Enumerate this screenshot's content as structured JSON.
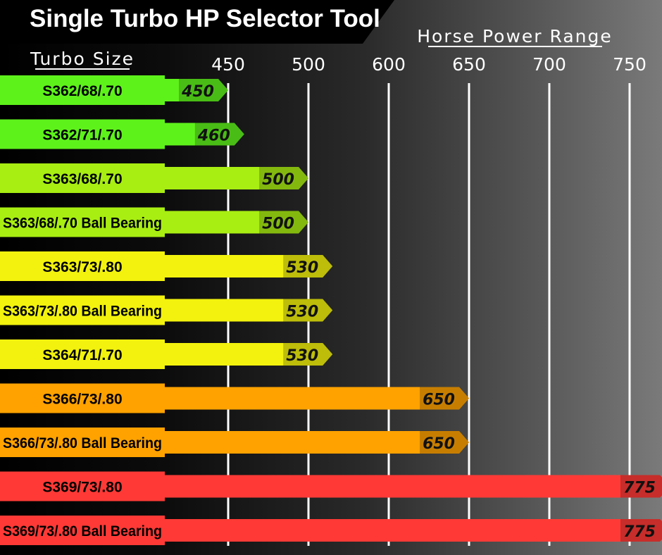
{
  "chart_data": {
    "type": "bar",
    "orientation": "horizontal",
    "title": "Single Turbo HP Selector Tool",
    "category_header": "Turbo Size",
    "value_header": "Horse Power Range",
    "ticks": [
      450,
      500,
      600,
      650,
      700,
      750
    ],
    "grid": true,
    "categories": [
      "S362/68/.70",
      "S362/71/.70",
      "S363/68/.70",
      "S363/68/.70 Ball Bearing",
      "S363/73/.80",
      "S363/73/.80 Ball Bearing",
      "S364/71/.70",
      "S366/73/.80",
      "S366/73/.80 Ball Bearing",
      "S369/73/.80",
      "S369/73/.80 Ball Bearing"
    ],
    "values": [
      450,
      460,
      500,
      500,
      530,
      530,
      530,
      650,
      650,
      775,
      775
    ],
    "colors": [
      "#5ef21b",
      "#5ef21b",
      "#a8ee12",
      "#a8ee12",
      "#f2f20e",
      "#f2f20e",
      "#f2f20e",
      "#ffa200",
      "#ffa200",
      "#ff3a36",
      "#ff3a36"
    ]
  }
}
